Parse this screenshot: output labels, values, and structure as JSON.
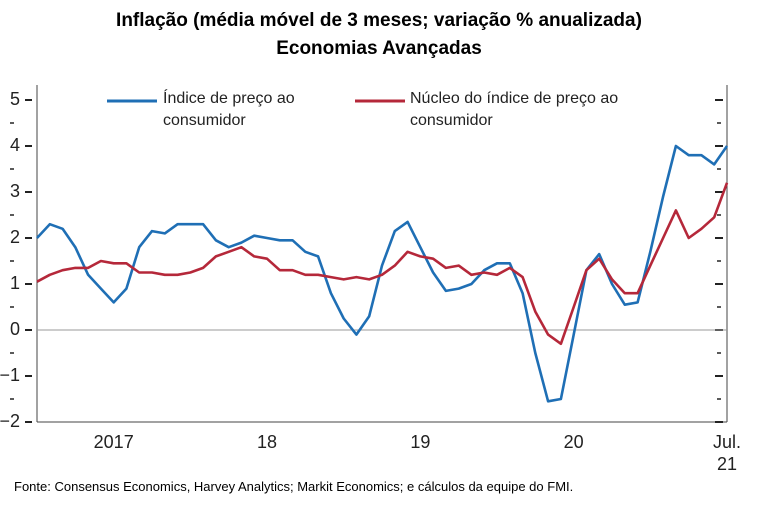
{
  "chart_data": {
    "type": "line",
    "title": "Inflação (média móvel de 3 meses; variação % anualizada)",
    "subtitle": "Economias Avançadas",
    "source": "Fonte: Consensus Economics, Harvey Analytics; Markit Economics; e cálculos da equipe do FMI.",
    "categories": [
      null,
      null,
      null,
      null,
      null,
      null,
      "2017",
      null,
      null,
      null,
      null,
      null,
      null,
      null,
      null,
      null,
      null,
      null,
      "18",
      null,
      null,
      null,
      null,
      null,
      null,
      null,
      null,
      null,
      null,
      null,
      "19",
      null,
      null,
      null,
      null,
      null,
      null,
      null,
      null,
      null,
      null,
      null,
      "20",
      null,
      null,
      null,
      null,
      null,
      null,
      null,
      null,
      null,
      null,
      null,
      "Jul. 21"
    ],
    "series": [
      {
        "name": "Índice de preço ao consumidor",
        "color": "#1f6fb5",
        "values": [
          2.0,
          2.3,
          2.2,
          1.8,
          1.2,
          0.9,
          0.6,
          0.9,
          1.8,
          2.15,
          2.1,
          2.3,
          2.3,
          2.3,
          1.95,
          1.8,
          1.9,
          2.05,
          2.0,
          1.95,
          1.95,
          1.7,
          1.6,
          0.8,
          0.25,
          -0.1,
          0.3,
          1.4,
          2.15,
          2.35,
          1.8,
          1.25,
          0.85,
          0.9,
          1.0,
          1.3,
          1.45,
          1.45,
          0.8,
          -0.5,
          -1.55,
          -1.5,
          -0.1,
          1.3,
          1.65,
          1.0,
          0.55,
          0.6,
          1.7,
          2.9,
          4.0,
          3.8,
          3.8,
          3.6,
          4.0
        ]
      },
      {
        "name": "Núcleo do índice de preço ao consumidor",
        "color": "#b5283a",
        "values": [
          1.05,
          1.2,
          1.3,
          1.35,
          1.35,
          1.5,
          1.45,
          1.45,
          1.25,
          1.25,
          1.2,
          1.2,
          1.25,
          1.35,
          1.6,
          1.7,
          1.8,
          1.6,
          1.55,
          1.3,
          1.3,
          1.2,
          1.2,
          1.15,
          1.1,
          1.15,
          1.1,
          1.2,
          1.4,
          1.7,
          1.6,
          1.55,
          1.35,
          1.4,
          1.2,
          1.25,
          1.2,
          1.35,
          1.15,
          0.4,
          -0.1,
          -0.3,
          0.5,
          1.3,
          1.55,
          1.1,
          0.8,
          0.8,
          1.4,
          2.0,
          2.6,
          2.0,
          2.2,
          2.45,
          3.2
        ]
      }
    ],
    "ylim": [
      -2,
      5
    ],
    "yticks": [
      {
        "value": -2,
        "label": "−2"
      },
      {
        "value": -1,
        "label": "−1"
      },
      0,
      1,
      2,
      3,
      4,
      5
    ],
    "yminorticks": [
      -1.5,
      -0.5,
      0.5,
      1.5,
      2.5,
      3.5,
      4.5
    ],
    "hline": 0
  }
}
